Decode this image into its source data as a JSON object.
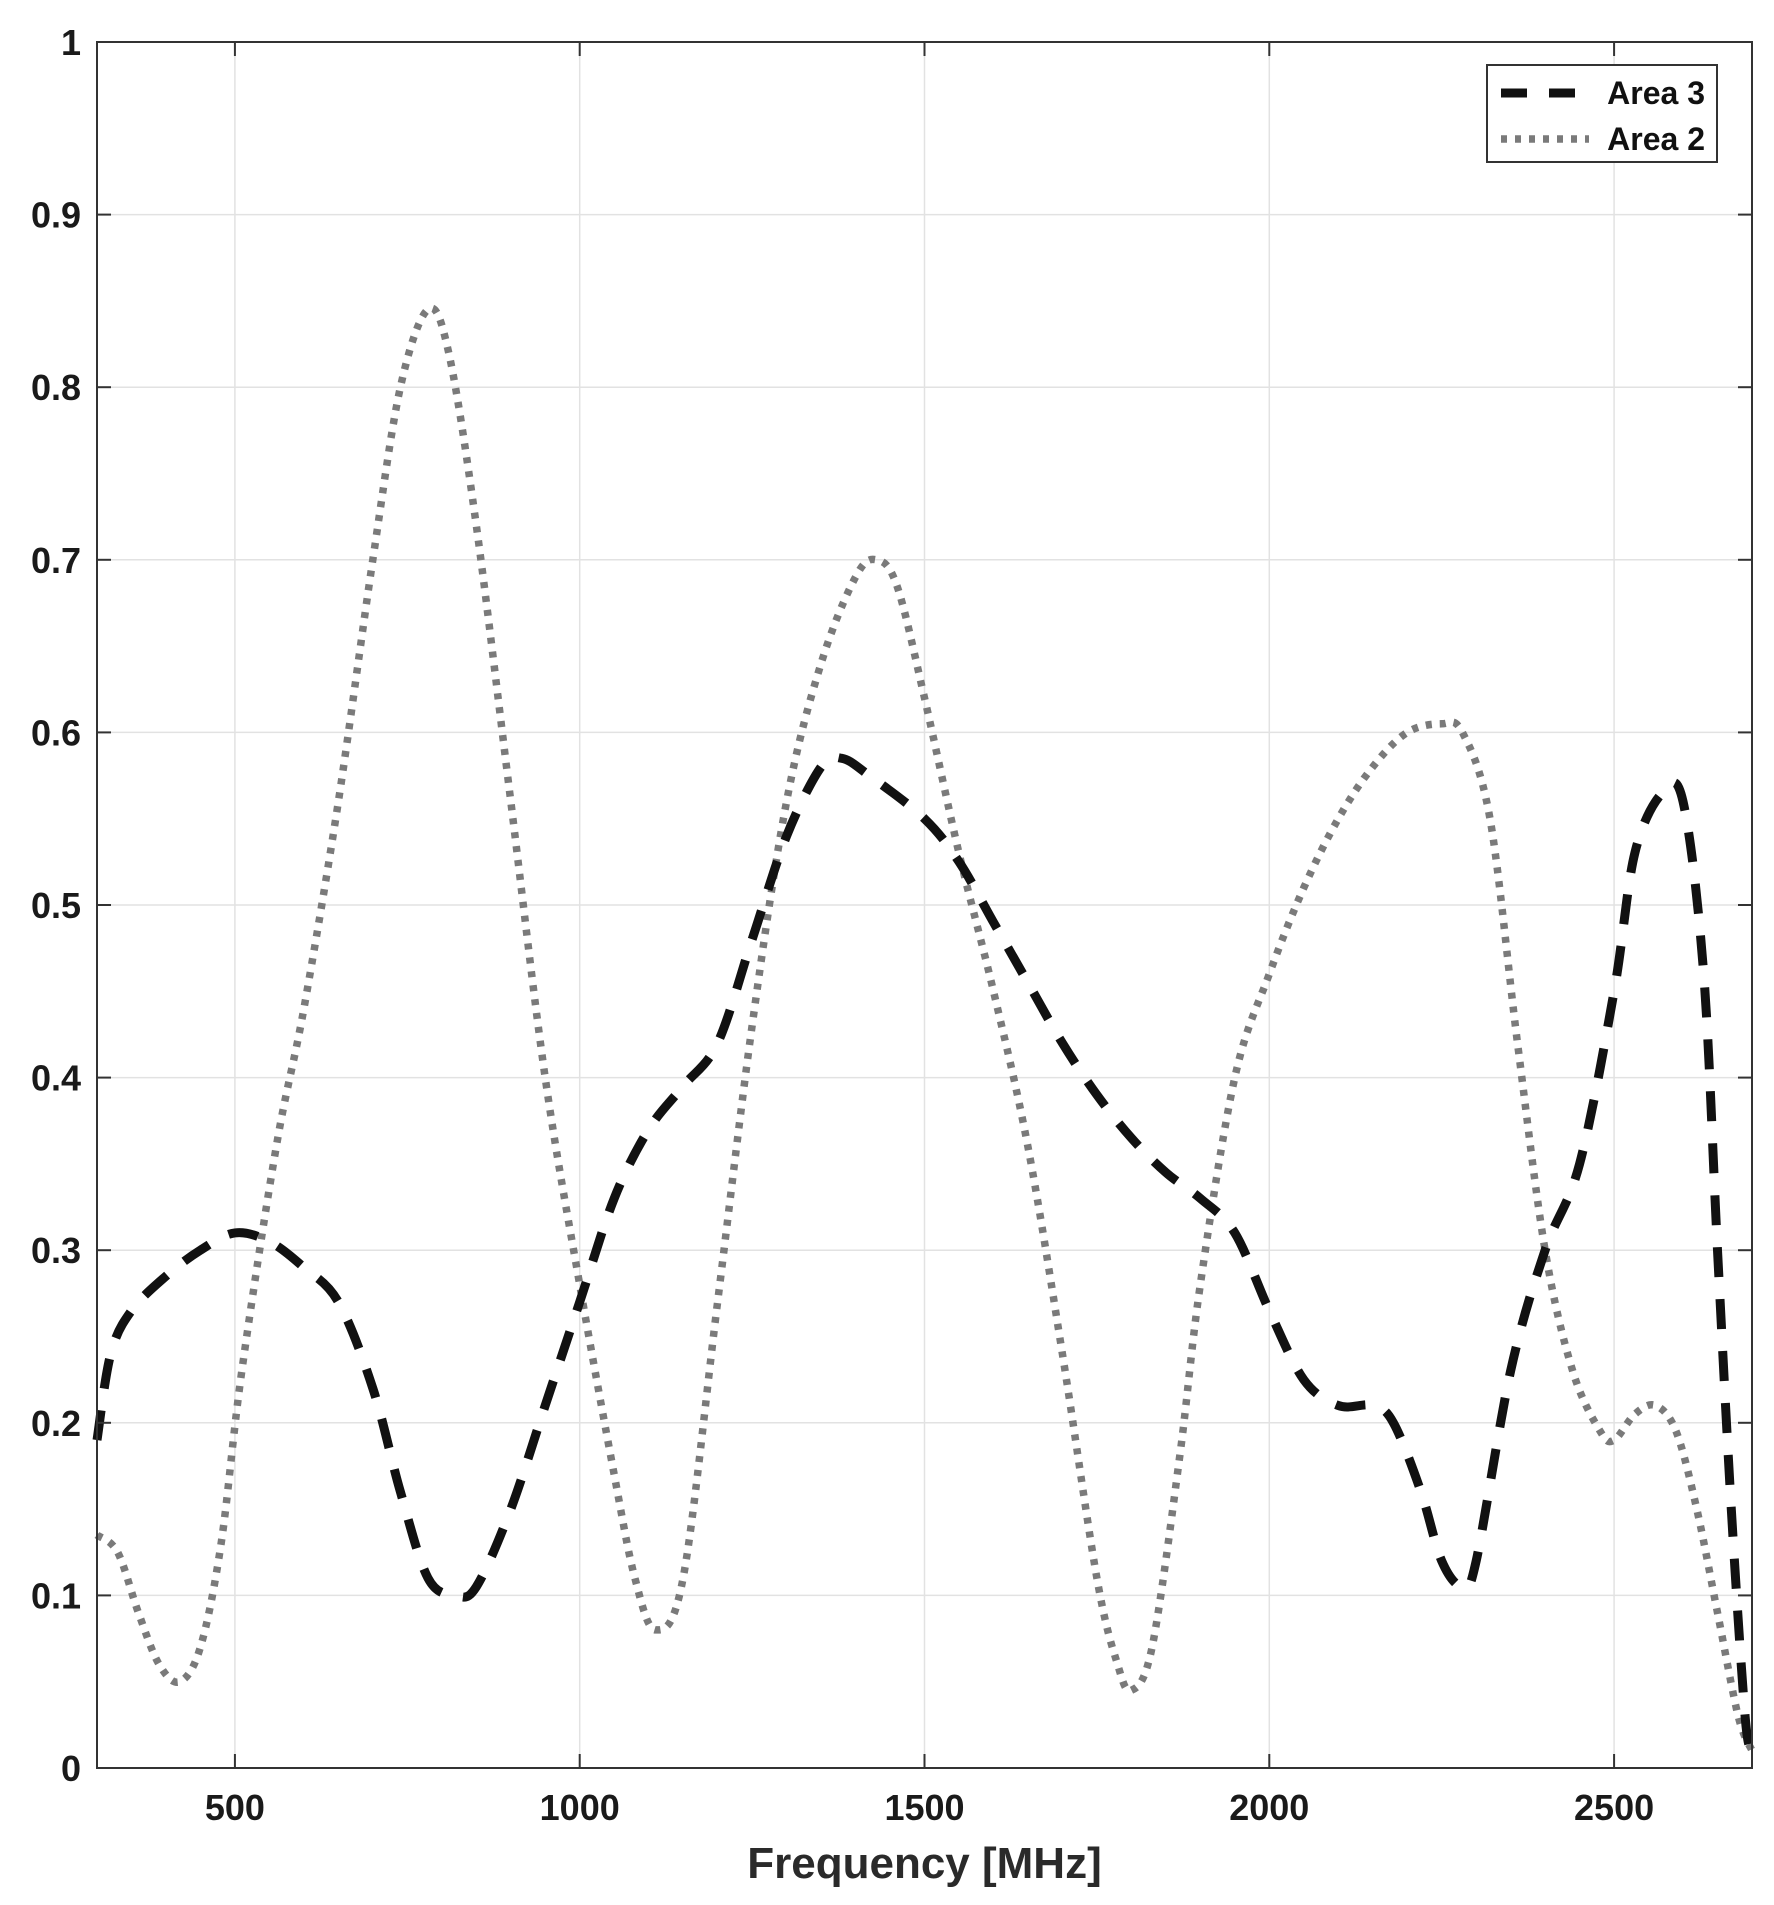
{
  "chart_data": {
    "type": "line",
    "title": "",
    "xlabel": "Frequency [MHz]",
    "ylabel": "",
    "xlim": [
      300,
      2700
    ],
    "ylim": [
      0,
      1
    ],
    "xticks": [
      500,
      1000,
      1500,
      2000,
      2500
    ],
    "yticks": [
      0,
      0.1,
      0.2,
      0.3,
      0.4,
      0.5,
      0.6,
      0.7,
      0.8,
      0.9,
      1
    ],
    "ytick_labels": [
      "0",
      "0.1",
      "0.2",
      "0.3",
      "0.4",
      "0.5",
      "0.6",
      "0.7",
      "0.8",
      "0.9",
      "1"
    ],
    "grid": true,
    "legend_position": "top-right",
    "series": [
      {
        "name": "Area 3",
        "style": "dashed",
        "color": "#111111",
        "x": [
          300,
          320,
          350,
          400,
          450,
          500,
          550,
          600,
          650,
          700,
          740,
          780,
          820,
          850,
          900,
          950,
          1000,
          1050,
          1100,
          1150,
          1200,
          1250,
          1300,
          1350,
          1380,
          1420,
          1500,
          1550,
          1600,
          1650,
          1700,
          1750,
          1800,
          1850,
          1900,
          1950,
          2000,
          2050,
          2100,
          2150,
          2180,
          2220,
          2250,
          2280,
          2300,
          2350,
          2400,
          2450,
          2500,
          2530,
          2570,
          2600,
          2630,
          2650,
          2670,
          2690,
          2700
        ],
        "y": [
          0.19,
          0.24,
          0.265,
          0.285,
          0.3,
          0.31,
          0.305,
          0.29,
          0.27,
          0.22,
          0.16,
          0.11,
          0.1,
          0.105,
          0.15,
          0.21,
          0.27,
          0.33,
          0.37,
          0.395,
          0.42,
          0.48,
          0.54,
          0.58,
          0.585,
          0.575,
          0.55,
          0.525,
          0.49,
          0.455,
          0.42,
          0.39,
          0.365,
          0.345,
          0.33,
          0.31,
          0.265,
          0.225,
          0.21,
          0.21,
          0.2,
          0.16,
          0.12,
          0.105,
          0.12,
          0.23,
          0.3,
          0.35,
          0.45,
          0.53,
          0.565,
          0.56,
          0.46,
          0.3,
          0.15,
          0.03,
          0.01
        ]
      },
      {
        "name": "Area 2",
        "style": "dotted",
        "color": "#7a7a7a",
        "x": [
          300,
          330,
          360,
          390,
          420,
          450,
          480,
          510,
          560,
          600,
          650,
          700,
          740,
          780,
          810,
          850,
          900,
          950,
          1000,
          1050,
          1080,
          1110,
          1150,
          1200,
          1250,
          1300,
          1350,
          1400,
          1430,
          1460,
          1500,
          1550,
          1600,
          1650,
          1700,
          1750,
          1780,
          1800,
          1830,
          1870,
          1900,
          1950,
          2000,
          2050,
          2100,
          2150,
          2200,
          2250,
          2280,
          2320,
          2360,
          2400,
          2440,
          2480,
          2500,
          2530,
          2560,
          2590,
          2620,
          2650,
          2680,
          2700
        ],
        "y": [
          0.135,
          0.125,
          0.09,
          0.06,
          0.05,
          0.07,
          0.13,
          0.23,
          0.36,
          0.44,
          0.56,
          0.7,
          0.8,
          0.845,
          0.82,
          0.72,
          0.56,
          0.4,
          0.28,
          0.17,
          0.11,
          0.08,
          0.11,
          0.27,
          0.43,
          0.56,
          0.64,
          0.69,
          0.7,
          0.685,
          0.62,
          0.53,
          0.45,
          0.36,
          0.24,
          0.11,
          0.06,
          0.045,
          0.07,
          0.18,
          0.28,
          0.4,
          0.46,
          0.51,
          0.55,
          0.58,
          0.6,
          0.605,
          0.6,
          0.55,
          0.42,
          0.3,
          0.23,
          0.195,
          0.19,
          0.205,
          0.21,
          0.195,
          0.15,
          0.09,
          0.03,
          0.01
        ]
      }
    ]
  }
}
